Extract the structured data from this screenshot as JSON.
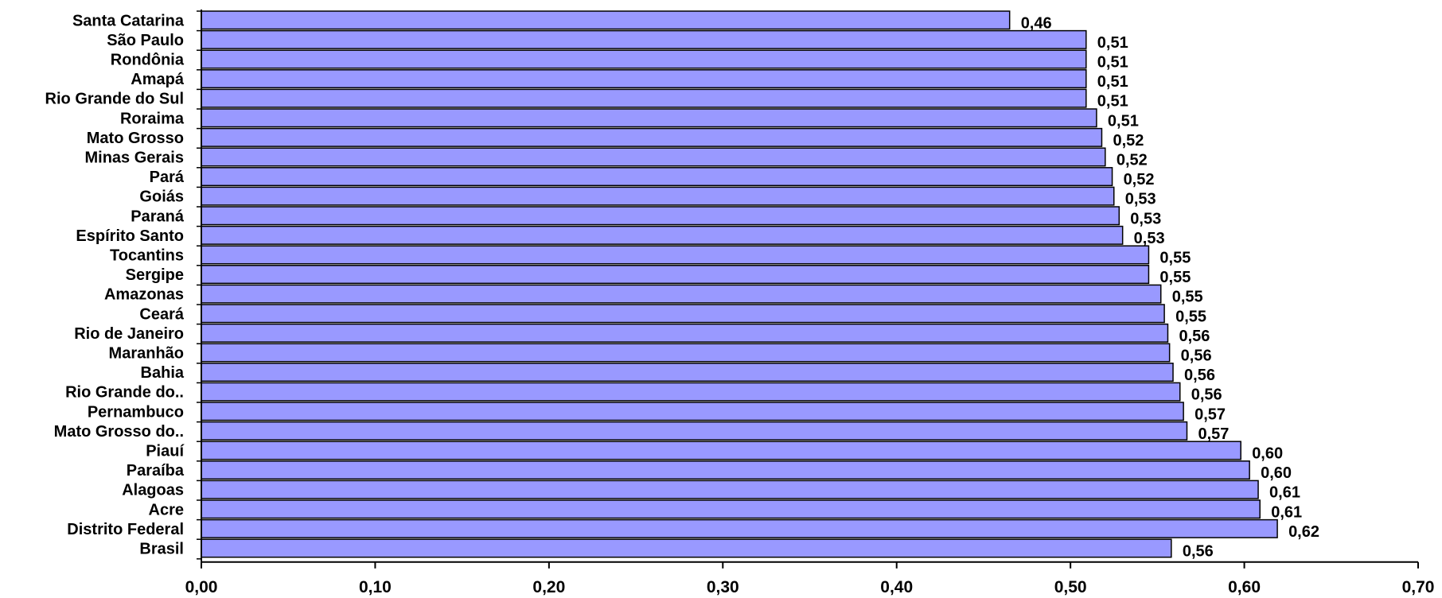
{
  "chart_data": {
    "type": "bar",
    "orientation": "horizontal",
    "categories": [
      "Santa Catarina",
      "São Paulo",
      "Rondônia",
      "Amapá",
      "Rio Grande do Sul",
      "Roraima",
      "Mato Grosso",
      "Minas Gerais",
      "Pará",
      "Goiás",
      "Paraná",
      "Espírito Santo",
      "Tocantins",
      "Sergipe",
      "Amazonas",
      "Ceará",
      "Rio de Janeiro",
      "Maranhão",
      "Bahia",
      "Rio Grande do..",
      "Pernambuco",
      "Mato Grosso do..",
      "Piauí",
      "Paraíba",
      "Alagoas",
      "Acre",
      "Distrito Federal",
      "Brasil"
    ],
    "values": [
      0.465,
      0.509,
      0.509,
      0.509,
      0.509,
      0.515,
      0.518,
      0.52,
      0.524,
      0.525,
      0.528,
      0.53,
      0.545,
      0.545,
      0.552,
      0.554,
      0.556,
      0.557,
      0.559,
      0.563,
      0.565,
      0.567,
      0.598,
      0.603,
      0.608,
      0.609,
      0.619,
      0.558
    ],
    "value_labels": [
      "0,46",
      "0,51",
      "0,51",
      "0,51",
      "0,51",
      "0,51",
      "0,52",
      "0,52",
      "0,52",
      "0,53",
      "0,53",
      "0,53",
      "0,55",
      "0,55",
      "0,55",
      "0,55",
      "0,56",
      "0,56",
      "0,56",
      "0,56",
      "0,57",
      "0,57",
      "0,60",
      "0,60",
      "0,61",
      "0,61",
      "0,62",
      "0,56"
    ],
    "x_ticks": [
      "0,00",
      "0,10",
      "0,20",
      "0,30",
      "0,40",
      "0,50",
      "0,60",
      "0,70"
    ],
    "xlim": [
      0,
      0.7
    ],
    "bar_color": "#9999ff",
    "grid": false,
    "title": "",
    "xlabel": "",
    "ylabel": ""
  }
}
